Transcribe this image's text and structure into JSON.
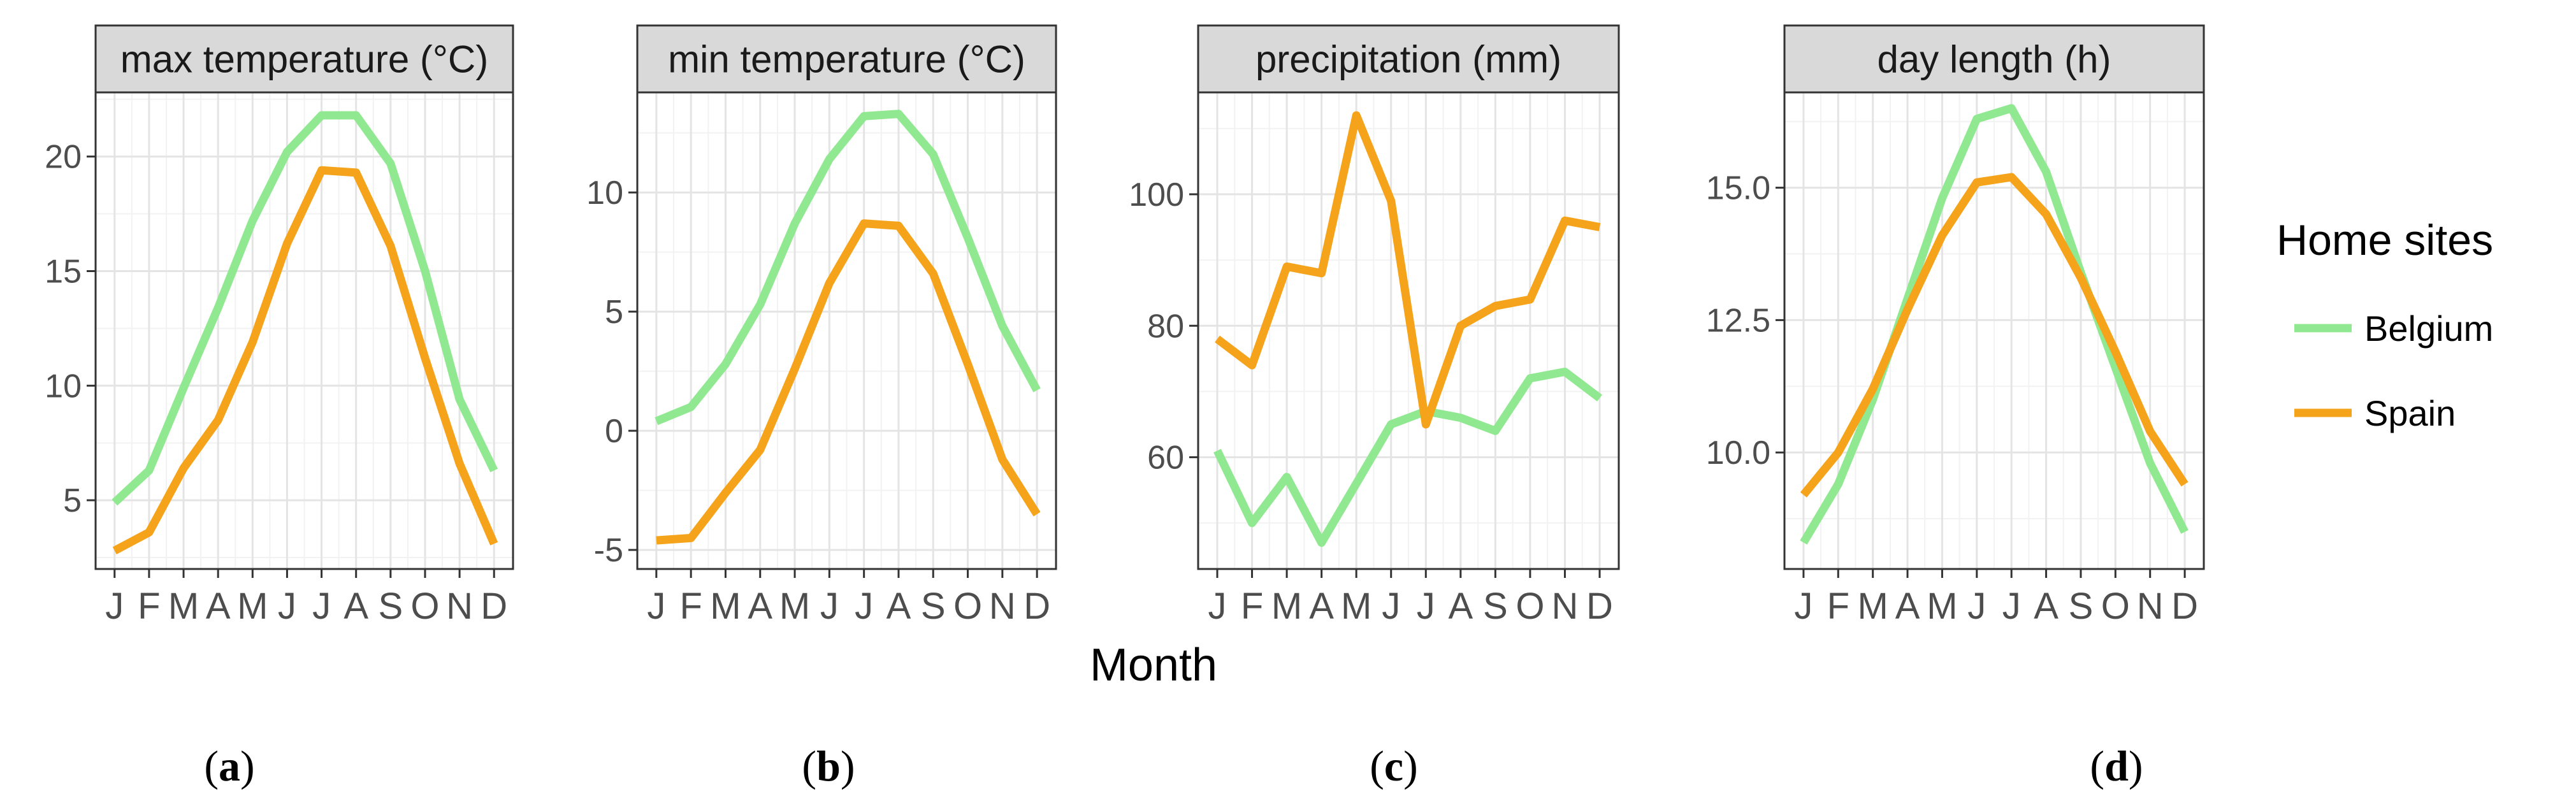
{
  "chart_data": [
    {
      "type": "line",
      "title": "max temperature (°C)",
      "panel_label": "a",
      "categories": [
        "J",
        "F",
        "M",
        "A",
        "M",
        "J",
        "J",
        "A",
        "S",
        "O",
        "N",
        "D"
      ],
      "yticks": [
        5,
        10,
        15,
        20
      ],
      "ylim": [
        2,
        22.8
      ],
      "series": [
        {
          "name": "Belgium",
          "values": [
            4.9,
            6.3,
            9.9,
            13.4,
            17.2,
            20.2,
            21.8,
            21.8,
            19.7,
            15.0,
            9.4,
            6.3
          ]
        },
        {
          "name": "Spain",
          "values": [
            2.8,
            3.6,
            6.4,
            8.5,
            11.9,
            16.2,
            19.4,
            19.3,
            16.1,
            11.2,
            6.6,
            3.1
          ]
        }
      ]
    },
    {
      "type": "line",
      "title": "min temperature (°C)",
      "panel_label": "b",
      "categories": [
        "J",
        "F",
        "M",
        "A",
        "M",
        "J",
        "J",
        "A",
        "S",
        "O",
        "N",
        "D"
      ],
      "yticks": [
        -5,
        0,
        5,
        10
      ],
      "ylim": [
        -5.8,
        14.2
      ],
      "series": [
        {
          "name": "Belgium",
          "values": [
            0.4,
            1.0,
            2.8,
            5.3,
            8.7,
            11.4,
            13.2,
            13.3,
            11.6,
            8.1,
            4.4,
            1.7
          ]
        },
        {
          "name": "Spain",
          "values": [
            -4.6,
            -4.5,
            -2.6,
            -0.8,
            2.6,
            6.2,
            8.7,
            8.6,
            6.6,
            2.8,
            -1.2,
            -3.5
          ]
        }
      ]
    },
    {
      "type": "line",
      "title": "precipitation (mm)",
      "panel_label": "c",
      "categories": [
        "J",
        "F",
        "M",
        "A",
        "M",
        "J",
        "J",
        "A",
        "S",
        "O",
        "N",
        "D"
      ],
      "yticks": [
        60,
        80,
        100
      ],
      "ylim": [
        43,
        115.5
      ],
      "series": [
        {
          "name": "Belgium",
          "values": [
            61,
            50,
            57,
            47,
            56,
            65,
            67,
            66,
            64,
            72,
            73,
            69
          ]
        },
        {
          "name": "Spain",
          "values": [
            78,
            74,
            89,
            88,
            112,
            99,
            65,
            80,
            83,
            84,
            96,
            95
          ]
        }
      ]
    },
    {
      "type": "line",
      "title": "day length (h)",
      "panel_label": "d",
      "categories": [
        "J",
        "F",
        "M",
        "A",
        "M",
        "J",
        "J",
        "A",
        "S",
        "O",
        "N",
        "D"
      ],
      "yticks": [
        "10.0",
        "12.5",
        "15.0"
      ],
      "ylim": [
        7.8,
        16.8
      ],
      "series": [
        {
          "name": "Belgium",
          "values": [
            8.3,
            9.4,
            11.0,
            12.9,
            14.8,
            16.3,
            16.5,
            15.3,
            13.4,
            11.6,
            9.8,
            8.5
          ]
        },
        {
          "name": "Spain",
          "values": [
            9.2,
            10.0,
            11.2,
            12.7,
            14.1,
            15.1,
            15.2,
            14.5,
            13.3,
            11.9,
            10.4,
            9.4
          ]
        }
      ]
    }
  ],
  "xlabel": "Month",
  "legend": {
    "title": "Home sites",
    "items": [
      {
        "name": "Belgium",
        "color": "#90e890"
      },
      {
        "name": "Spain",
        "color": "#f5a31a"
      }
    ]
  },
  "colors": {
    "strip_fill": "#d9d9d9",
    "grid_major": "#e4e4e4",
    "grid_minor": "#f2f2f2"
  }
}
